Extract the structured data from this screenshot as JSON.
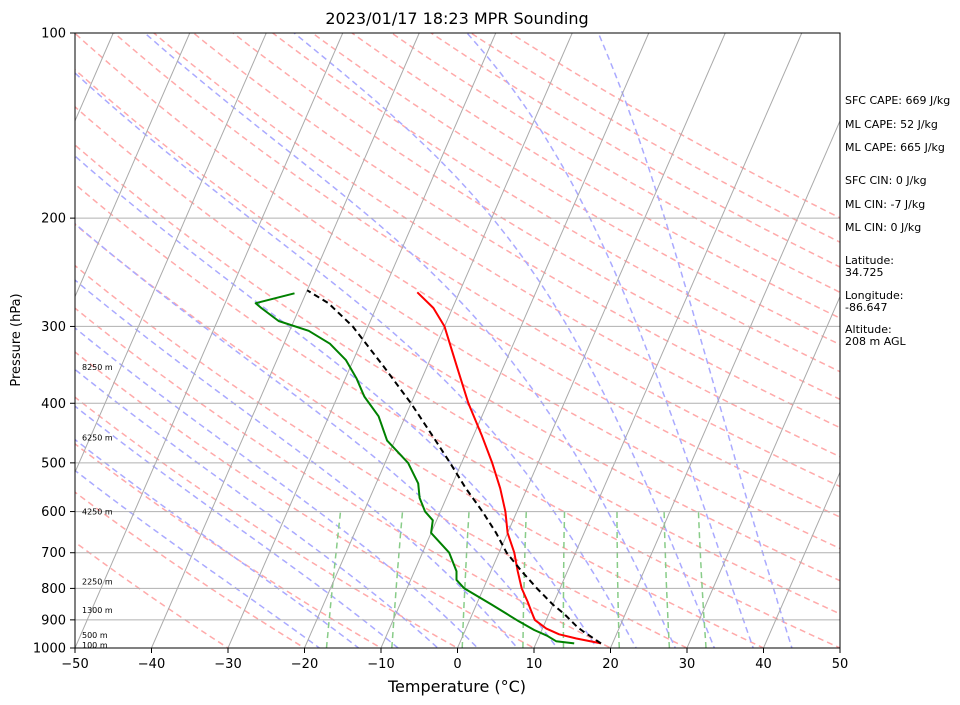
{
  "chart_data": {
    "type": "skew-t",
    "title": "2023/01/17 18:23 MPR Sounding",
    "xlabel": "Temperature (°C)",
    "ylabel": "Pressure (hPa)",
    "xlim": [
      -50,
      50
    ],
    "ylim": [
      1000,
      100
    ],
    "y_scale": "log",
    "x_ticks": [
      "−50",
      "−40",
      "−30",
      "−20",
      "−10",
      "0",
      "10",
      "20",
      "30",
      "40",
      "50"
    ],
    "x_tick_values": [
      -50,
      -40,
      -30,
      -20,
      -10,
      0,
      10,
      20,
      30,
      40,
      50
    ],
    "y_ticks": [
      "100",
      "200",
      "300",
      "400",
      "500",
      "600",
      "700",
      "800",
      "900",
      "1000"
    ],
    "y_tick_values": [
      100,
      200,
      300,
      400,
      500,
      600,
      700,
      800,
      900,
      1000
    ],
    "grid": true,
    "colors": {
      "temperature": "#ff0000",
      "dewpoint": "#008000",
      "parcel": "#000000",
      "isotherm": "#aaaaaa",
      "dry_adiabat": "#ffaaaa",
      "moist_adiabat": "#aaaaff",
      "mixing_ratio": "#88cc88"
    },
    "series": [
      {
        "name": "temperature",
        "points": [
          [
            18.5,
            983
          ],
          [
            15.0,
            965
          ],
          [
            12.5,
            950
          ],
          [
            10.5,
            930
          ],
          [
            8.5,
            900
          ],
          [
            7.5,
            870
          ],
          [
            6.5,
            840
          ],
          [
            5.0,
            800
          ],
          [
            3.5,
            750
          ],
          [
            2.0,
            700
          ],
          [
            0.0,
            650
          ],
          [
            -1.5,
            600
          ],
          [
            -3.5,
            550
          ],
          [
            -6.0,
            500
          ],
          [
            -9.0,
            450
          ],
          [
            -12.5,
            400
          ],
          [
            -16.0,
            350
          ],
          [
            -20.0,
            300
          ],
          [
            -22.5,
            280
          ],
          [
            -25.5,
            264
          ]
        ]
      },
      {
        "name": "dewpoint",
        "points": [
          [
            15.0,
            983
          ],
          [
            12.5,
            975
          ],
          [
            11.0,
            955
          ],
          [
            9.0,
            935
          ],
          [
            6.5,
            905
          ],
          [
            4.5,
            880
          ],
          [
            2.0,
            850
          ],
          [
            -2.5,
            800
          ],
          [
            -4.0,
            775
          ],
          [
            -4.5,
            750
          ],
          [
            -6.5,
            700
          ],
          [
            -10.0,
            650
          ],
          [
            -10.5,
            620
          ],
          [
            -12.0,
            600
          ],
          [
            -13.5,
            570
          ],
          [
            -14.5,
            540
          ],
          [
            -17.0,
            500
          ],
          [
            -21.0,
            460
          ],
          [
            -23.5,
            420
          ],
          [
            -26.5,
            390
          ],
          [
            -28.5,
            365
          ],
          [
            -31.0,
            340
          ],
          [
            -34.0,
            320
          ],
          [
            -37.5,
            305
          ],
          [
            -42.0,
            294
          ],
          [
            -45.0,
            280
          ],
          [
            -46.0,
            275
          ],
          [
            -41.5,
            265
          ]
        ]
      },
      {
        "name": "parcel",
        "points": [
          [
            18.5,
            983
          ],
          [
            15.5,
            940
          ],
          [
            14.5,
            925
          ],
          [
            12.0,
            880
          ],
          [
            10.0,
            850
          ],
          [
            7.0,
            800
          ],
          [
            4.0,
            750
          ],
          [
            1.0,
            700
          ],
          [
            -1.5,
            650
          ],
          [
            -4.5,
            600
          ],
          [
            -8.0,
            550
          ],
          [
            -11.5,
            500
          ],
          [
            -15.5,
            450
          ],
          [
            -20.0,
            400
          ],
          [
            -25.5,
            350
          ],
          [
            -32.0,
            300
          ],
          [
            -36.5,
            275
          ],
          [
            -40.0,
            262
          ]
        ]
      }
    ],
    "height_labels": [
      "8250 m",
      "6250 m",
      "4250 m",
      "2250 m",
      "1300 m",
      "500 m",
      "100 m"
    ],
    "height_label_pressures": [
      349,
      455,
      600,
      780,
      868,
      952,
      989
    ],
    "annotations": [
      "SFC CAPE: 669 J/kg",
      "ML CAPE: 52 J/kg",
      "ML CAPE: 665 J/kg",
      "SFC CIN: 0 J/kg",
      "ML CIN: -7 J/kg",
      "ML CIN: 0 J/kg",
      "Latitude:",
      "34.725",
      "Longitude:",
      "-86.647",
      "Altitude:",
      "208 m AGL"
    ]
  }
}
